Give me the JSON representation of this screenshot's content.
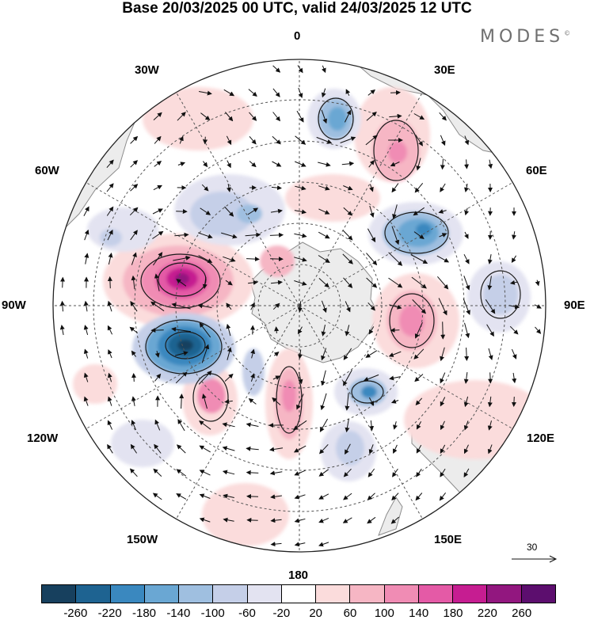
{
  "title": "Base 20/03/2025 00 UTC, valid 24/03/2025 12 UTC",
  "brand": "MODES",
  "brand_mark": "©",
  "longitude_labels": {
    "lon_0": "0",
    "lon_30e": "30E",
    "lon_60e": "60E",
    "lon_90e": "90E",
    "lon_120e": "120E",
    "lon_150e": "150E",
    "lon_180": "180",
    "lon_150w": "150W",
    "lon_120w": "120W",
    "lon_90w": "90W",
    "lon_60w": "60W",
    "lon_30w": "30W"
  },
  "reference_vector": "30",
  "colorbar": {
    "colors": [
      "#17405e",
      "#1e6391",
      "#3a88bf",
      "#6aa7d3",
      "#9fbfe0",
      "#c5cfe8",
      "#e3e3f1",
      "#ffffff",
      "#fbdcdc",
      "#f6b6c4",
      "#f08cb4",
      "#e45aa6",
      "#c61d91",
      "#92177f",
      "#5c0e6e"
    ],
    "ticks": [
      "-260",
      "-220",
      "-180",
      "-140",
      "-100",
      "-60",
      "-20",
      "20",
      "60",
      "100",
      "140",
      "180",
      "220",
      "260"
    ]
  },
  "map_colors": {
    "land": "#ececec",
    "coast": "#8c8c8c",
    "grid": "#555555",
    "contour": "#1a1a1a"
  }
}
